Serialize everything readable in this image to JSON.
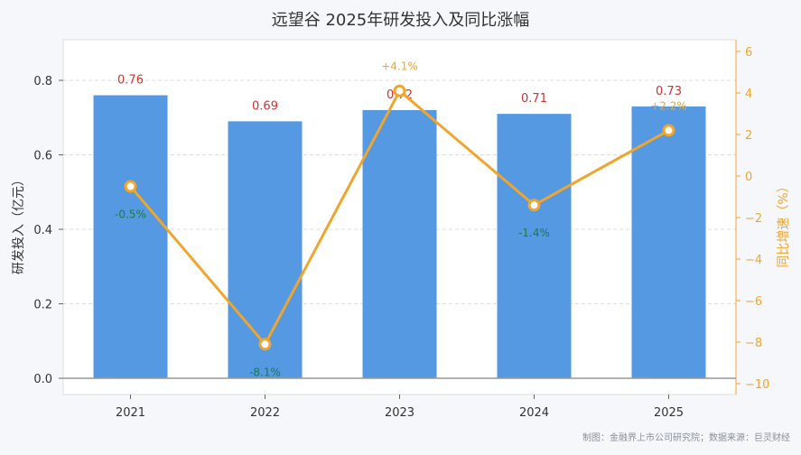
{
  "chart_data": {
    "type": "bar+line",
    "title": "远望谷 2025年研发投入及同比涨幅",
    "categories": [
      "2021",
      "2022",
      "2023",
      "2024",
      "2025"
    ],
    "series": [
      {
        "name": "研发投入（亿元）",
        "type": "bar",
        "axis": "left",
        "values": [
          0.76,
          0.69,
          0.72,
          0.71,
          0.73
        ],
        "labels": [
          "0.76",
          "0.69",
          "0.72",
          "0.71",
          "0.73"
        ]
      },
      {
        "name": "同比增速（%）",
        "type": "line",
        "axis": "right",
        "values": [
          -0.5,
          -8.1,
          4.1,
          -1.4,
          2.2
        ],
        "labels": [
          "-0.5%",
          "-8.1%",
          "+4.1%",
          "-1.4%",
          "+2.2%"
        ]
      }
    ],
    "ylabel": "研发投入（亿元）",
    "y2label": "同比增速（%）",
    "ylim": [
      0,
      0.9
    ],
    "yticks": [
      "0.0",
      "0.2",
      "0.4",
      "0.6",
      "0.8"
    ],
    "y2lim": [
      -10,
      6
    ],
    "y2ticks": [
      "−10",
      "−8",
      "−6",
      "−4",
      "−2",
      "0",
      "2",
      "4",
      "6"
    ],
    "grid": true,
    "colors": {
      "bar": "#5599e2",
      "line": "#f0a52c",
      "bar_label": "#cc3333",
      "pos_label": "#f0a52c",
      "neg_label": "#1a7a4a",
      "left_axis_text": "#333333",
      "right_axis_text": "#f0a52c"
    }
  },
  "footer": "制图：金融界上市公司研究院；数据来源：巨灵财经"
}
